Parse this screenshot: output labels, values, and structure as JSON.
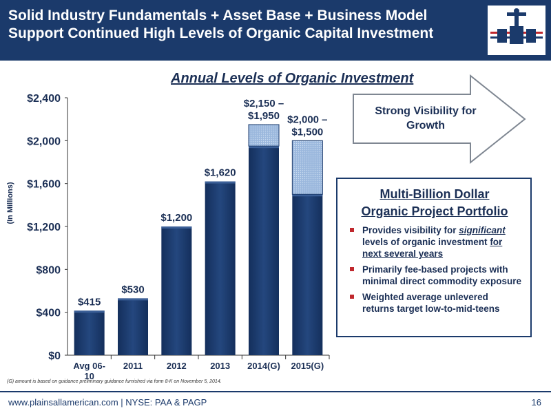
{
  "header": {
    "title_line1": "Solid Industry Fundamentals + Asset Base + Business Model",
    "title_line2": "Support Continued High Levels of Organic Capital Investment"
  },
  "chart_title": "Annual Levels of Organic Investment",
  "chart_data": {
    "type": "bar",
    "ylabel": "(In Millions)",
    "ylim": [
      0,
      2400
    ],
    "yticks": [
      "$0",
      "$400",
      "$800",
      "$1,200",
      "$1,600",
      "$2,000",
      "$2,400"
    ],
    "ytick_values": [
      0,
      400,
      800,
      1200,
      1600,
      2000,
      2400
    ],
    "categories": [
      "Avg 06-10",
      "2011",
      "2012",
      "2013",
      "2014(G)",
      "2015(G)"
    ],
    "category_lines": [
      [
        "Avg 06-",
        "10"
      ],
      [
        "2011"
      ],
      [
        "2012"
      ],
      [
        "2013"
      ],
      [
        "2014(G)"
      ],
      [
        "2015(G)"
      ]
    ],
    "base_values": [
      415,
      530,
      1200,
      1620,
      1950,
      1500
    ],
    "range_top_values": [
      null,
      null,
      null,
      null,
      2150,
      2000
    ],
    "value_labels": [
      [
        "$415"
      ],
      [
        "$530"
      ],
      [
        "$1,200"
      ],
      [
        "$1,620"
      ],
      [
        "$2,150 –",
        "$1,950"
      ],
      [
        "$2,000 –",
        "$1,500"
      ]
    ],
    "colors": {
      "bar": "#1b3a6b",
      "range": "#9bb8dd"
    }
  },
  "arrow_text_line1": "Strong Visibility for",
  "arrow_text_line2": "Growth",
  "panel": {
    "title_line1": "Multi-Billion Dollar",
    "title_line2": "Organic Project Portfolio",
    "b1_pre": "Provides visibility for ",
    "b1_em": "significant",
    "b1_mid": " levels of organic investment ",
    "b1_ul": "for next several years",
    "b2": "Primarily fee-based projects with minimal direct commodity exposure",
    "b3": "Weighted average unlevered returns target low-to-mid-teens"
  },
  "footnote": "(G) amount is based on guidance preliminary guidance furnished via form 8-K on November 5, 2014.",
  "footer": "www.plainsallamerican.com | NYSE: PAA & PAGP",
  "page_number": "16"
}
